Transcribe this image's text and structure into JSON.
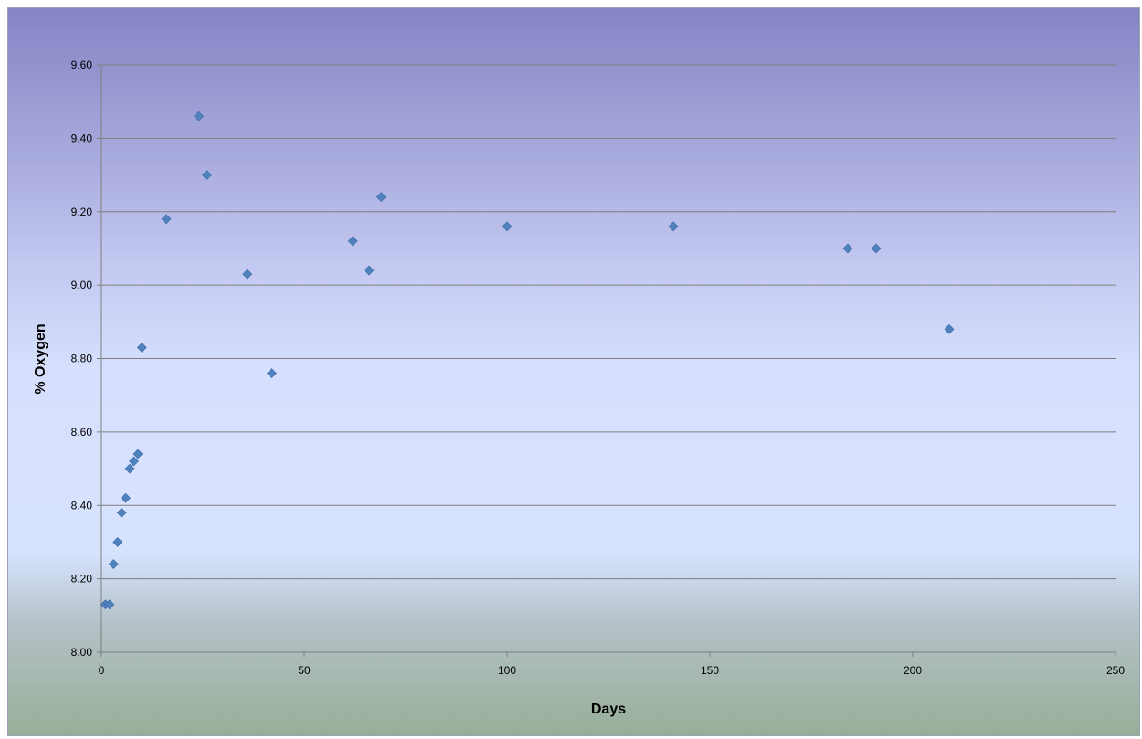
{
  "chart_data": {
    "type": "scatter",
    "xlabel": "Days",
    "ylabel": "% Oxygen",
    "xlim": [
      0,
      250
    ],
    "ylim": [
      8.0,
      9.6
    ],
    "x_ticks": [
      0,
      50,
      100,
      150,
      200,
      250
    ],
    "y_ticks": [
      8.0,
      8.2,
      8.4,
      8.6,
      8.8,
      9.0,
      9.2,
      9.4,
      9.6
    ],
    "x_tick_labels": [
      "0",
      "50",
      "100",
      "150",
      "200",
      "250"
    ],
    "y_tick_labels": [
      "8.00",
      "8.20",
      "8.40",
      "8.60",
      "8.80",
      "9.00",
      "9.20",
      "9.40",
      "9.60"
    ],
    "grid": "horizontal",
    "legend": "none",
    "marker_color": "#4f81bd",
    "marker_shape": "diamond",
    "points": [
      {
        "x": 1,
        "y": 8.13
      },
      {
        "x": 2,
        "y": 8.13
      },
      {
        "x": 3,
        "y": 8.24
      },
      {
        "x": 4,
        "y": 8.3
      },
      {
        "x": 5,
        "y": 8.38
      },
      {
        "x": 6,
        "y": 8.42
      },
      {
        "x": 7,
        "y": 8.5
      },
      {
        "x": 8,
        "y": 8.52
      },
      {
        "x": 9,
        "y": 8.54
      },
      {
        "x": 10,
        "y": 8.83
      },
      {
        "x": 16,
        "y": 9.18
      },
      {
        "x": 24,
        "y": 9.46
      },
      {
        "x": 26,
        "y": 9.3
      },
      {
        "x": 36,
        "y": 9.03
      },
      {
        "x": 42,
        "y": 8.76
      },
      {
        "x": 62,
        "y": 9.12
      },
      {
        "x": 66,
        "y": 9.04
      },
      {
        "x": 69,
        "y": 9.24
      },
      {
        "x": 100,
        "y": 9.16
      },
      {
        "x": 141,
        "y": 9.16
      },
      {
        "x": 184,
        "y": 9.1
      },
      {
        "x": 191,
        "y": 9.1
      },
      {
        "x": 209,
        "y": 8.88
      }
    ]
  }
}
